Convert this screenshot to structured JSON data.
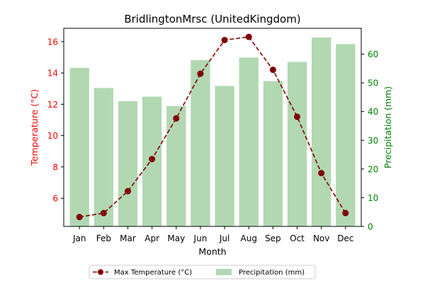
{
  "chart_data": {
    "type": "bar+line",
    "title": "BridlingtonMrsc (UnitedKingdom)",
    "xlabel": "Month",
    "categories": [
      "Jan",
      "Feb",
      "Mar",
      "Apr",
      "May",
      "Jun",
      "Jul",
      "Aug",
      "Sep",
      "Oct",
      "Nov",
      "Dec"
    ],
    "left_axis": {
      "label": "Temperature (°C)",
      "ylim": [
        4.2,
        16.85
      ],
      "ticks": [
        6,
        8,
        10,
        12,
        14,
        16
      ],
      "color": "#ff0000"
    },
    "right_axis": {
      "label": "Precipitation (mm)",
      "ylim": [
        0,
        69
      ],
      "ticks": [
        0,
        10,
        20,
        30,
        40,
        50,
        60
      ],
      "color": "#008000"
    },
    "series": [
      {
        "name": "Max Temperature (°C)",
        "type": "line",
        "axis": "left",
        "color": "#800000",
        "style": "dashed",
        "marker": "circle",
        "values": [
          4.8,
          5.05,
          6.45,
          8.5,
          11.1,
          13.95,
          16.1,
          16.3,
          14.2,
          11.2,
          7.6,
          5.05
        ]
      },
      {
        "name": "Precipitation (mm)",
        "type": "bar",
        "axis": "right",
        "color": "#b2d8b2",
        "values": [
          55.2,
          48.2,
          43.6,
          45.2,
          41.9,
          57.9,
          48.9,
          58.8,
          50.6,
          57.3,
          65.8,
          63.5
        ]
      }
    ],
    "legend": {
      "placement": "bottom-center",
      "entries": [
        "Max Temperature (°C)",
        "Precipitation (mm)"
      ]
    }
  }
}
